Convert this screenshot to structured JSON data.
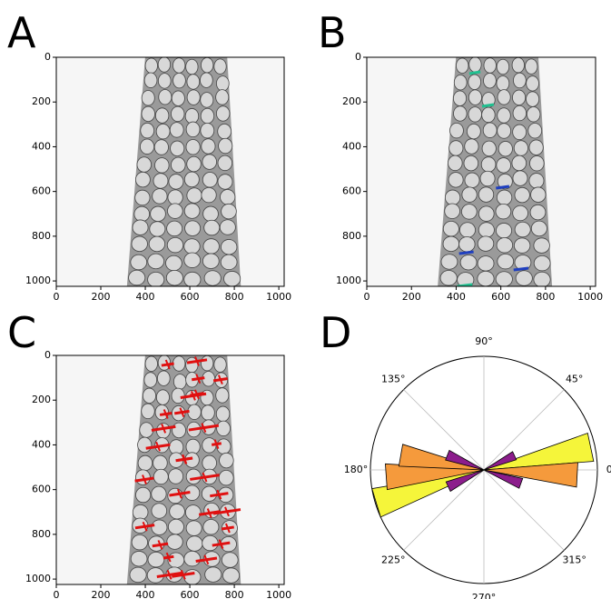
{
  "chart_data": [
    {
      "type": "image",
      "label": "A",
      "variant": "plain",
      "xlim": [
        0,
        1024
      ],
      "ylim": [
        1024,
        0
      ],
      "xticks": [
        0,
        200,
        400,
        600,
        800,
        1000
      ],
      "yticks": [
        0,
        200,
        400,
        600,
        800,
        1000
      ]
    },
    {
      "type": "image",
      "label": "B",
      "variant": "segments",
      "xlim": [
        0,
        1024
      ],
      "ylim": [
        1024,
        0
      ],
      "xticks": [
        0,
        200,
        400,
        600,
        800,
        1000
      ],
      "yticks": [
        0,
        200,
        400,
        600,
        800,
        1000
      ]
    },
    {
      "type": "image",
      "label": "C",
      "variant": "crosses",
      "xlim": [
        0,
        1024
      ],
      "ylim": [
        1024,
        0
      ],
      "xticks": [
        0,
        200,
        400,
        600,
        800,
        1000
      ],
      "yticks": [
        0,
        200,
        400,
        600,
        800,
        1000
      ]
    },
    {
      "type": "polar_bar",
      "label": "D",
      "rlim": [
        0,
        1
      ],
      "bar_width": 15,
      "theta": [
        12,
        357,
        25,
        340,
        197,
        184,
        170,
        158,
        205
      ],
      "values": [
        0.97,
        0.83,
        0.3,
        0.35,
        1.0,
        0.87,
        0.75,
        0.35,
        0.35
      ],
      "colors": [
        "#f5f53a",
        "#f59a3c",
        "#8c1d8c",
        "#8c1d8c",
        "#f5f53a",
        "#f59a3c",
        "#f59a3c",
        "#8c1d8c",
        "#8c1d8c"
      ],
      "thetaticks": [
        {
          "value": 0,
          "label": "0°"
        },
        {
          "value": 45,
          "label": "45°"
        },
        {
          "value": 90,
          "label": "90°"
        },
        {
          "value": 135,
          "label": "135°"
        },
        {
          "value": 180,
          "label": "180°"
        },
        {
          "value": 225,
          "label": "225°"
        },
        {
          "value": 270,
          "label": "270°"
        },
        {
          "value": 315,
          "label": "315°"
        }
      ]
    }
  ]
}
